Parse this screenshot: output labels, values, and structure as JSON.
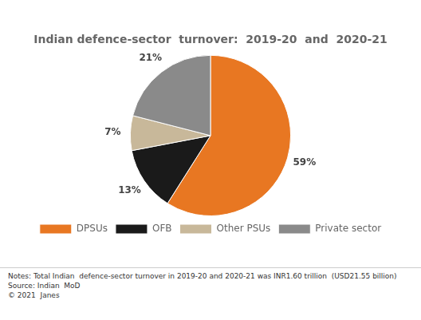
{
  "chart_data": {
    "type": "pie",
    "title": "Indian defence-sector  turnover:  2019-20  and  2020-21",
    "categories": [
      "DPSUs",
      "OFB",
      "Other PSUs",
      "Private sector"
    ],
    "values": [
      59,
      13,
      7,
      21
    ],
    "value_labels": [
      "59%",
      "13%",
      "7%",
      "21%"
    ],
    "colors": [
      "#e87722",
      "#1a1a1a",
      "#c8b89a",
      "#8a8a8a"
    ],
    "data_labels": true,
    "legend": "bottom",
    "annotations": [
      "Notes: Total Indian  defence-sector turnover in 2019-20 and 2020-21 was INR1.60 trillion  (USD21.55 billion)",
      "Source: Indian  MoD",
      "© 2021  Janes"
    ]
  }
}
